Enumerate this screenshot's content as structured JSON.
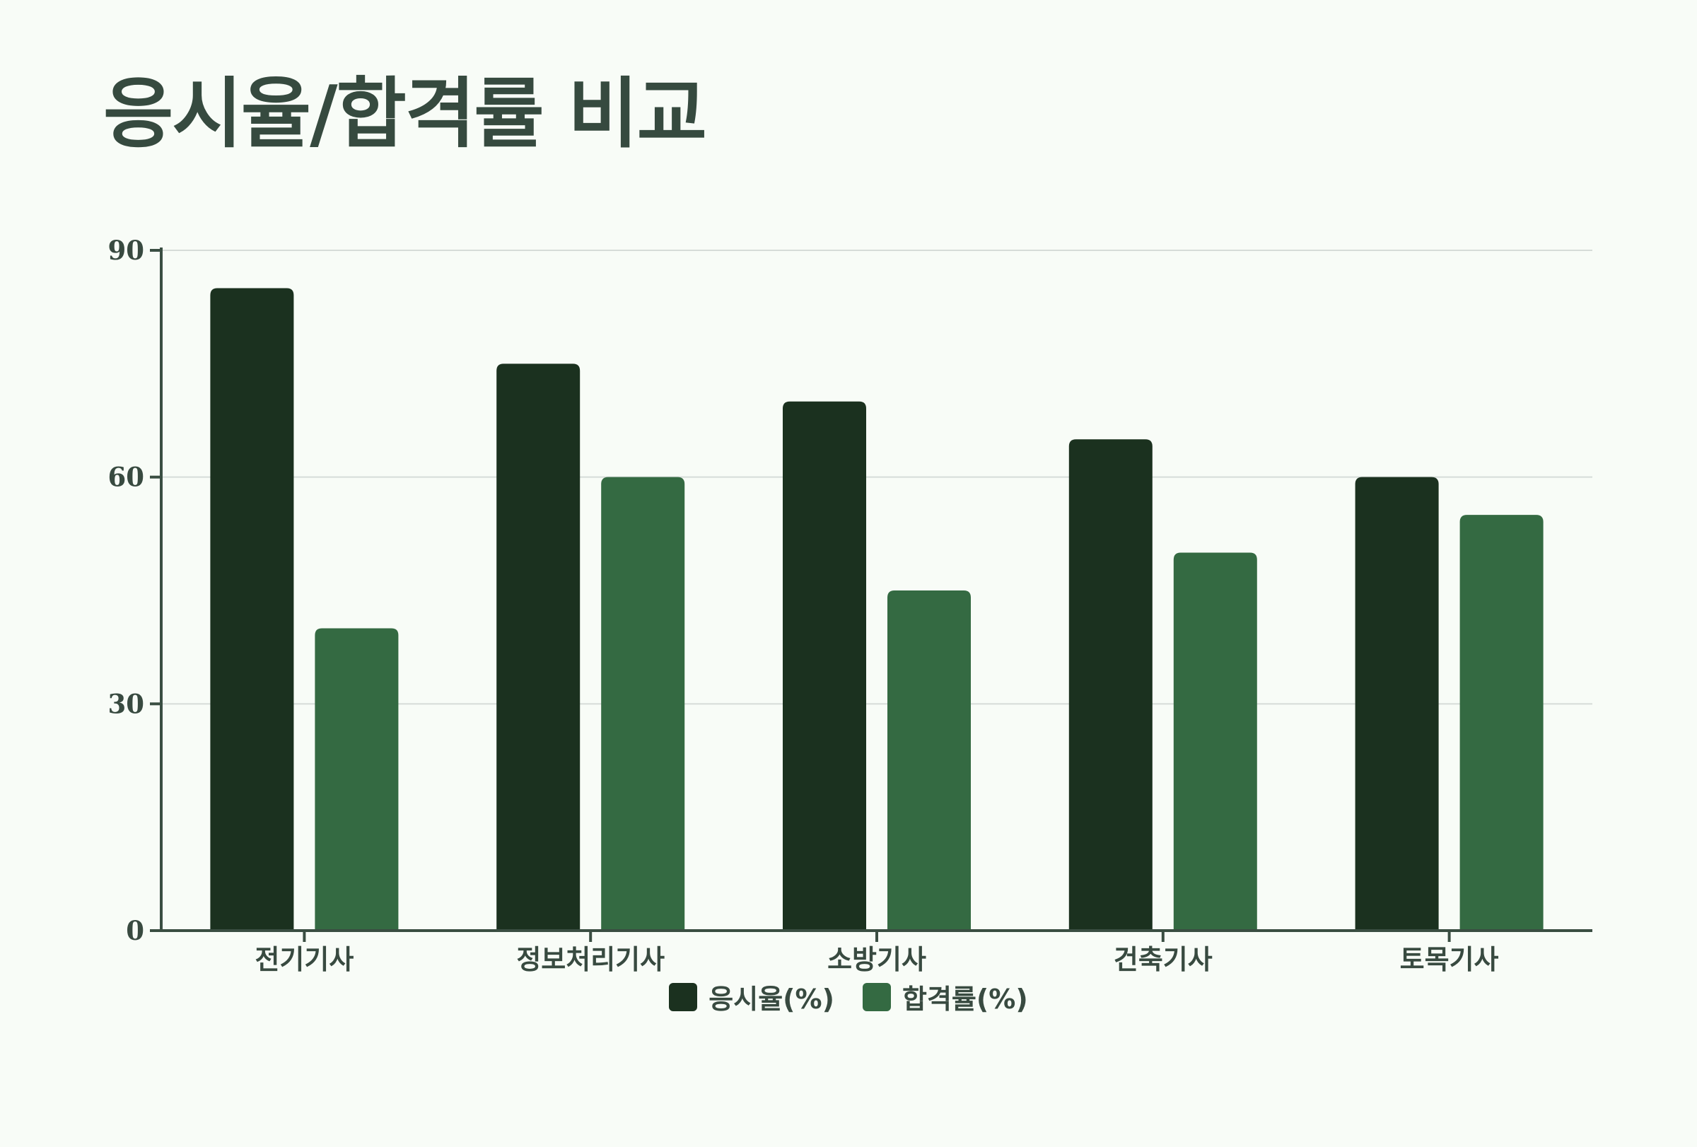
{
  "chart_data": {
    "type": "bar",
    "title": "응시율/합격률 비교",
    "xlabel": "",
    "ylabel": "",
    "categories": [
      "전기기사",
      "정보처리기사",
      "소방기사",
      "건축기사",
      "토목기사"
    ],
    "series": [
      {
        "name": "응시율(%)",
        "color": "#1b311f",
        "values": [
          85,
          75,
          70,
          65,
          60
        ]
      },
      {
        "name": "합격률(%)",
        "color": "#346a42",
        "values": [
          40,
          60,
          45,
          50,
          55
        ]
      }
    ],
    "ylim": [
      0,
      90
    ],
    "yticks": [
      "0",
      "30",
      "60",
      "90"
    ],
    "grid": true,
    "legend_position": "bottom-center",
    "colors": {
      "background": "#f8fcf7",
      "axis": "#3a4e42",
      "grid": "#d6dcd8",
      "text": "#384a40"
    }
  }
}
